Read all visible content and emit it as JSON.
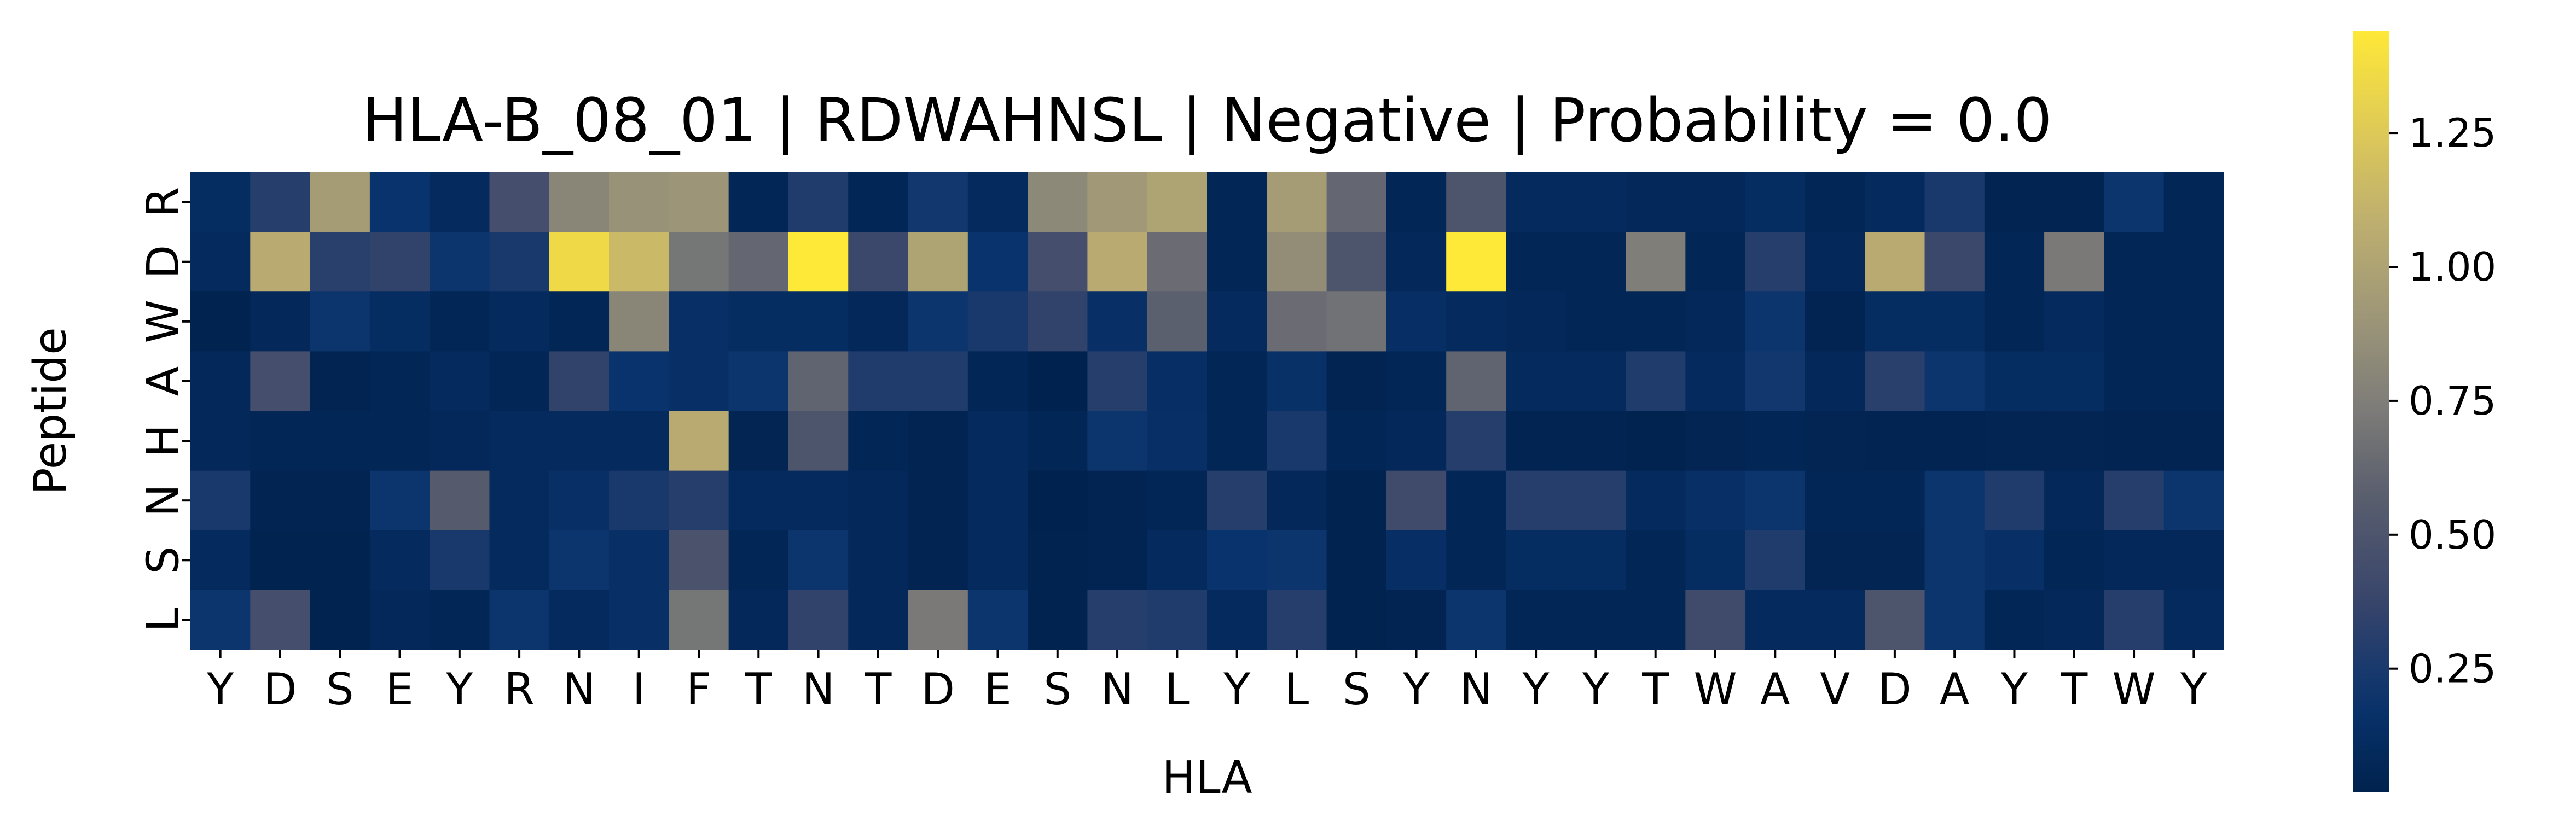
{
  "chart_data": {
    "type": "heatmap",
    "title": "HLA-B_08_01 | RDWAHNSL | Negative | Probability = 0.0",
    "xlabel": "HLA",
    "ylabel": "Peptide",
    "x_categories": [
      "Y",
      "D",
      "S",
      "E",
      "Y",
      "R",
      "N",
      "I",
      "F",
      "T",
      "N",
      "T",
      "D",
      "E",
      "S",
      "N",
      "L",
      "Y",
      "L",
      "S",
      "Y",
      "N",
      "Y",
      "Y",
      "T",
      "W",
      "A",
      "V",
      "D",
      "A",
      "Y",
      "T",
      "W",
      "Y"
    ],
    "y_categories": [
      "R",
      "D",
      "W",
      "A",
      "H",
      "N",
      "S",
      "L"
    ],
    "colormap": "cividis",
    "colorbar": {
      "min": 0.02,
      "max": 1.44,
      "ticks": [
        0.25,
        0.5,
        0.75,
        1.0,
        1.25
      ],
      "tick_labels": [
        "0.25",
        "0.50",
        "0.75",
        "1.00",
        "1.25"
      ]
    },
    "values": [
      [
        0.12,
        0.3,
        0.95,
        0.18,
        0.1,
        0.45,
        0.8,
        0.88,
        0.9,
        0.06,
        0.28,
        0.06,
        0.22,
        0.1,
        0.82,
        0.92,
        1.0,
        0.06,
        0.95,
        0.62,
        0.06,
        0.5,
        0.1,
        0.1,
        0.08,
        0.08,
        0.12,
        0.06,
        0.1,
        0.25,
        0.04,
        0.04,
        0.2,
        0.06
      ],
      [
        0.1,
        1.05,
        0.32,
        0.35,
        0.2,
        0.25,
        1.35,
        1.15,
        0.7,
        0.62,
        1.44,
        0.4,
        1.0,
        0.18,
        0.45,
        1.05,
        0.65,
        0.06,
        0.85,
        0.5,
        0.08,
        1.44,
        0.06,
        0.06,
        0.75,
        0.06,
        0.3,
        0.08,
        1.05,
        0.4,
        0.06,
        0.72,
        0.06,
        0.06
      ],
      [
        0.03,
        0.08,
        0.2,
        0.12,
        0.06,
        0.1,
        0.06,
        0.8,
        0.15,
        0.12,
        0.12,
        0.08,
        0.2,
        0.25,
        0.35,
        0.15,
        0.58,
        0.1,
        0.65,
        0.68,
        0.14,
        0.1,
        0.08,
        0.06,
        0.06,
        0.08,
        0.2,
        0.04,
        0.12,
        0.12,
        0.06,
        0.1,
        0.06,
        0.06
      ],
      [
        0.08,
        0.45,
        0.04,
        0.06,
        0.1,
        0.06,
        0.35,
        0.18,
        0.15,
        0.2,
        0.6,
        0.28,
        0.28,
        0.06,
        0.02,
        0.3,
        0.14,
        0.06,
        0.16,
        0.04,
        0.06,
        0.6,
        0.1,
        0.1,
        0.28,
        0.1,
        0.22,
        0.08,
        0.32,
        0.2,
        0.12,
        0.12,
        0.06,
        0.06
      ],
      [
        0.08,
        0.06,
        0.06,
        0.06,
        0.08,
        0.1,
        0.1,
        0.1,
        1.05,
        0.05,
        0.5,
        0.06,
        0.04,
        0.1,
        0.06,
        0.2,
        0.15,
        0.06,
        0.25,
        0.06,
        0.08,
        0.3,
        0.04,
        0.04,
        0.03,
        0.05,
        0.06,
        0.05,
        0.04,
        0.04,
        0.05,
        0.05,
        0.04,
        0.04
      ],
      [
        0.25,
        0.04,
        0.04,
        0.2,
        0.55,
        0.1,
        0.15,
        0.25,
        0.3,
        0.1,
        0.1,
        0.08,
        0.04,
        0.1,
        0.02,
        0.04,
        0.06,
        0.3,
        0.08,
        0.03,
        0.42,
        0.06,
        0.3,
        0.3,
        0.1,
        0.15,
        0.2,
        0.06,
        0.06,
        0.2,
        0.28,
        0.08,
        0.3,
        0.2
      ],
      [
        0.1,
        0.03,
        0.03,
        0.1,
        0.25,
        0.1,
        0.2,
        0.15,
        0.48,
        0.06,
        0.2,
        0.08,
        0.04,
        0.1,
        0.03,
        0.04,
        0.1,
        0.18,
        0.2,
        0.03,
        0.14,
        0.06,
        0.12,
        0.12,
        0.06,
        0.12,
        0.28,
        0.05,
        0.05,
        0.2,
        0.15,
        0.06,
        0.08,
        0.08
      ],
      [
        0.2,
        0.45,
        0.03,
        0.08,
        0.06,
        0.2,
        0.1,
        0.15,
        0.7,
        0.08,
        0.35,
        0.08,
        0.72,
        0.2,
        0.03,
        0.3,
        0.28,
        0.1,
        0.3,
        0.03,
        0.04,
        0.2,
        0.06,
        0.06,
        0.06,
        0.42,
        0.1,
        0.1,
        0.5,
        0.2,
        0.06,
        0.08,
        0.3,
        0.1
      ]
    ]
  }
}
